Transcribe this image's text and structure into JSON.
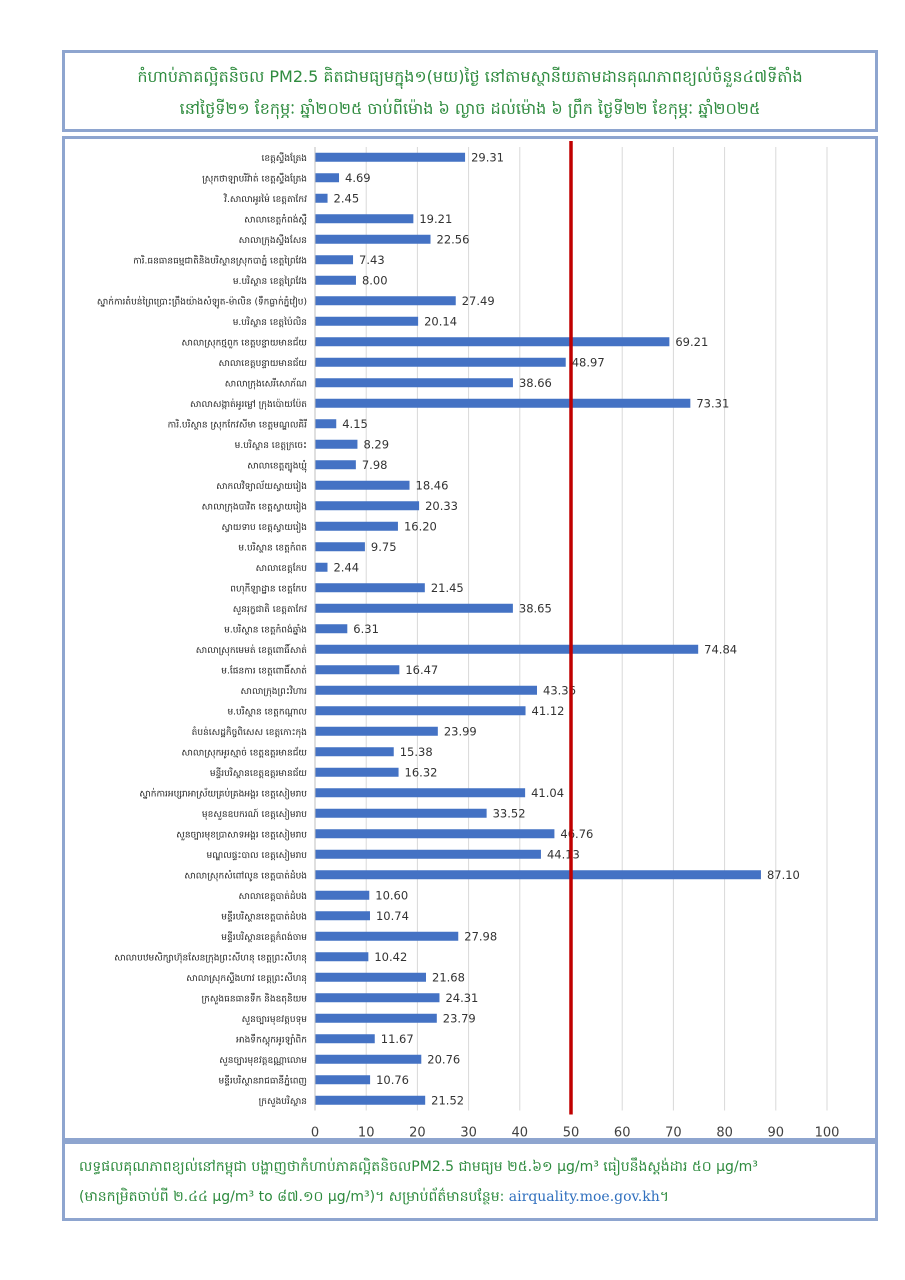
{
  "header": {
    "title_line1": "កំហាប់ភាគល្អិតនិចល PM2.5 គិតជាមធ្យមក្នុង១(មយ)ថ្ងៃ នៅតាមស្ថានីយតាមដានគុណភាពខ្យល់ចំនួន៤៧ទីតាំង",
    "title_line2": "នៅថ្ងៃទី២១ ខែកុម្ភៈ ឆ្នាំ២០២៥ ចាប់ពីម៉ោង ៦ ល្ងាច ដល់ម៉ោង ៦ ព្រឹក ថ្ងៃទី២២ ខែកុម្ភៈ ឆ្នាំ២០២៥"
  },
  "footer": {
    "line1": "លទ្ធផលគុណភាពខ្យល់នៅកម្ពុជា បង្ហាញថាកំហាប់ភាគល្អិតនិចលPM2.5 ជាមធ្យម ២៥.៦១ µg/m³ ធៀបនឹងស្តង់ដារ ៥០ µg/m³",
    "line2": "(មានកម្រិតចាប់ពី ២.៤៤ µg/m³ to ៨៧.១០ µg/m³)។ សម្រាប់ព័ត៌មានបន្ថែម:",
    "link": "airquality.moe.gov.kh",
    "line2_end": "។"
  },
  "colors": {
    "bar": "#4472c4",
    "standard_line": "#c00000",
    "title_text": "#2e8b3e",
    "border": "#8ea5cf",
    "grid": "#d9d9d9"
  },
  "chart_data": {
    "type": "bar",
    "orientation": "horizontal",
    "categories": [
      "ខេត្តស្ទឹងត្រែង",
      "ស្រុកថាឡាបរិវ៉ាត់ ខេត្តស្ទឹងត្រែង",
      "វិ.សាលាអូរម៉ៃ ខេត្តតាកែវ",
      "សាលាខេត្តកំពង់ស្ពឺ",
      "សាលាក្រុងស្ទឹងសែន",
      "ការិ.ធនធានធម្មជាតិនិងបរិស្ថានស្រុកបាភ្នំ ខេត្តព្រៃវែង",
      "ម.បរិស្ថាន ខេត្តព្រៃវែង",
      "ស្នាក់ការតំបន់ព្រៃប្រោះព្រឹងយ៉ាងសំឡូត-ម៉ាលិន (ទឹកធ្លាក់ភ្នំវៀប)",
      "ម.បរិស្ថាន ខេត្តប៉ៃលិន",
      "សាលាស្រុកថ្មពួក ខេត្តបន្ទាយមានជ័យ",
      "សាលាខេត្តបន្ទាយមានជ័យ",
      "សាលាក្រុងសេរីសោភ័ណ",
      "សាលាសង្កាត់អូរម្លៅ ក្រុងប៉ោយប៉ែត",
      "ការិ.បរិស្ថាន ស្រុកកែវសីមា ខេត្តមណ្ឌលគិរី",
      "ម.បរិស្ថាន ខេត្តក្រចេះ",
      "សាលាខេត្តត្បូងឃ្មុំ",
      "សាកលវិទ្យាល័យស្វាយរៀង",
      "សាលាក្រុងបាវិត ខេត្តស្វាយរៀង",
      "ស្វាយទាប ខេត្តស្វាយរៀង",
      "ម.បរិស្ថាន ខេត្តកំពត",
      "សាលាខេត្តកែប",
      "ពហុកីឡាដ្ឋាន ខេត្តកែប",
      "សួនរុក្ខជាតិ ខេត្តតាកែវ",
      "ម.បរិស្ថាន ខេត្តកំពង់ឆ្នាំង",
      "សាលាស្រុកមេមត់ ខេត្តពោធិ៍សាត់",
      "ម.ផែនការ ខេត្តពោធិ៍សាត់",
      "សាលាក្រុងព្រះវិហារ",
      "ម.បរិស្ថាន ខេត្តកណ្តាល",
      "តំបន់សេដ្ឋកិច្ចពិសេស ខេត្តកោះកុង",
      "សាលាស្រុកអូរស្មាច់ ខេត្តឧត្តរមានជ័យ",
      "មន្ទីរបរិស្ថានខេត្តឧត្តរមានជ័យ",
      "ស្នាក់ការអប្សរាអាស្រ័យគ្រប់គ្រងអង្គរ ខេត្តសៀមរាប",
      "មុខសួនឧបករណ៍ ខេត្តសៀមរាប",
      "សួនច្បារមុខប្រាសាទអង្គរ ខេត្តសៀមរាប",
      "មណ្ឌលផ្ទះបាល ខេត្តសៀមរាប",
      "សាលាស្រុកសំពៅលូន ខេត្តបាត់ដំបង",
      "សាលាខេត្តបាត់ដំបង",
      "មន្ទីរបរិស្ថានខេត្តបាត់ដំបង",
      "មន្ទីរបរិស្ថានខេត្តកំពង់ចាម",
      "សាលាបឋមសិក្សាហ៊ុនសែនក្រុងព្រះសីហនុ ខេត្តព្រះសីហនុ",
      "សាលាស្រុកស្ទឹងហាវ ខេត្តព្រះសីហនុ",
      "ក្រសួងធនធានទឹក និងឧតុនិយម",
      "សួនច្បារមុខវត្តបទុម",
      "អាងទឹកស្តុកអូរឡាំពិក",
      "សួនច្បារមុខវត្តឧណ្ណាលោម",
      "មន្ទីរបរិស្ថានរាជធានីភ្នំពេញ",
      "ក្រសួងបរិស្ថាន"
    ],
    "values": [
      29.31,
      4.69,
      2.45,
      19.21,
      22.56,
      7.43,
      8.0,
      27.49,
      20.14,
      69.21,
      48.97,
      38.66,
      73.31,
      4.15,
      8.29,
      7.98,
      18.46,
      20.33,
      16.2,
      9.75,
      2.44,
      21.45,
      38.65,
      6.31,
      74.84,
      16.47,
      43.36,
      41.12,
      23.99,
      15.38,
      16.32,
      41.04,
      33.52,
      46.76,
      44.13,
      87.1,
      10.6,
      10.74,
      27.98,
      10.42,
      21.68,
      24.31,
      23.79,
      11.67,
      20.76,
      10.76,
      21.52
    ],
    "value_labels": [
      "29.31",
      "4.69",
      "2.45",
      "19.21",
      "22.56",
      "7.43",
      "8.00",
      "27.49",
      "20.14",
      "69.21",
      "48.97",
      "38.66",
      "73.31",
      "4.15",
      "8.29",
      "7.98",
      "18.46",
      "20.33",
      "16.20",
      "9.75",
      "2.44",
      "21.45",
      "38.65",
      "6.31",
      "74.84",
      "16.47",
      "43.36",
      "41.12",
      "23.99",
      "15.38",
      "16.32",
      "41.04",
      "33.52",
      "46.76",
      "44.13",
      "87.10",
      "10.60",
      "10.74",
      "27.98",
      "10.42",
      "21.68",
      "24.31",
      "23.79",
      "11.67",
      "20.76",
      "10.76",
      "21.52"
    ],
    "xlim": [
      0,
      100
    ],
    "xticks": [
      0,
      10,
      20,
      30,
      40,
      50,
      60,
      70,
      80,
      90,
      100
    ],
    "standard_line": 50,
    "grid": true,
    "title": "",
    "xlabel": "",
    "ylabel": ""
  }
}
